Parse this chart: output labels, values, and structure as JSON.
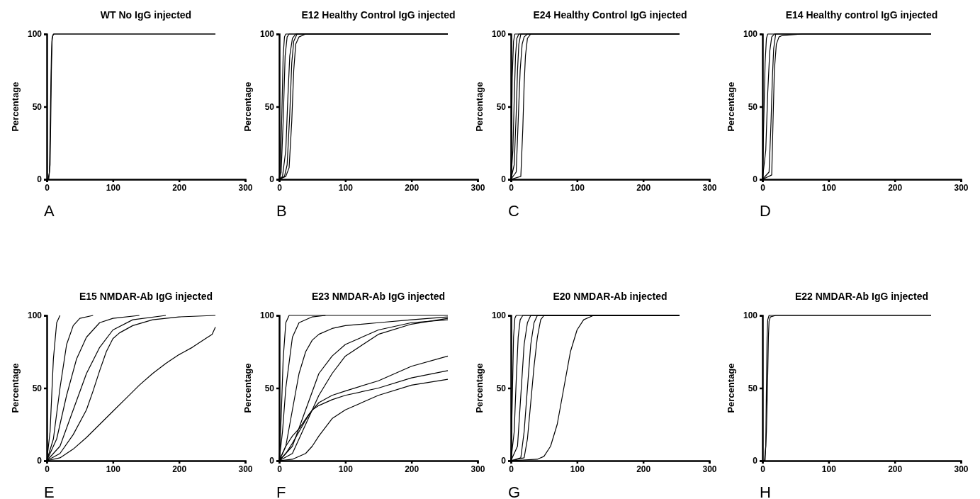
{
  "chart_data": [
    {
      "type": "line",
      "title": "WT No IgG injected",
      "ylabel": "Percentage",
      "xlim": [
        0,
        300
      ],
      "xticks": [
        0,
        100,
        200,
        300
      ],
      "ylim": [
        0,
        100
      ],
      "yticks": [
        0,
        50,
        100
      ],
      "annotations": [
        "A"
      ],
      "series": [
        {
          "color": "#000000",
          "x": [
            0,
            2,
            4,
            5,
            6,
            7,
            8,
            10,
            255
          ],
          "values": [
            0,
            0,
            5,
            30,
            60,
            85,
            97,
            100,
            100
          ]
        },
        {
          "color": "#000000",
          "x": [
            0,
            3,
            5,
            6,
            7,
            8,
            9,
            11,
            255
          ],
          "values": [
            0,
            0,
            10,
            40,
            75,
            95,
            99,
            100,
            100
          ]
        }
      ]
    },
    {
      "type": "line",
      "title": "E12 Healthy Control IgG injected",
      "ylabel": "Percentage",
      "xlim": [
        0,
        300
      ],
      "xticks": [
        0,
        100,
        200,
        300
      ],
      "ylim": [
        0,
        100
      ],
      "yticks": [
        0,
        50,
        100
      ],
      "annotations": [
        "B"
      ],
      "series": [
        {
          "color": "#000000",
          "x": [
            0,
            2,
            4,
            6,
            8,
            10,
            255
          ],
          "values": [
            0,
            10,
            45,
            85,
            98,
            100,
            100
          ]
        },
        {
          "color": "#000000",
          "x": [
            0,
            3,
            6,
            9,
            12,
            15,
            255
          ],
          "values": [
            0,
            5,
            40,
            85,
            98,
            100,
            100
          ]
        },
        {
          "color": "#000000",
          "x": [
            0,
            5,
            10,
            13,
            16,
            20,
            25,
            255
          ],
          "values": [
            0,
            2,
            20,
            55,
            85,
            97,
            100,
            100
          ]
        },
        {
          "color": "#000000",
          "x": [
            0,
            8,
            12,
            16,
            19,
            22,
            27,
            255
          ],
          "values": [
            0,
            2,
            10,
            45,
            80,
            95,
            100,
            100
          ]
        },
        {
          "color": "#000000",
          "x": [
            0,
            10,
            15,
            19,
            22,
            25,
            30,
            40,
            255
          ],
          "values": [
            0,
            2,
            8,
            40,
            75,
            93,
            98,
            100,
            100
          ]
        }
      ]
    },
    {
      "type": "line",
      "title": "E24 Healthy Control IgG injected",
      "ylabel": "Percentage",
      "xlim": [
        0,
        300
      ],
      "xticks": [
        0,
        100,
        200,
        300
      ],
      "ylim": [
        0,
        100
      ],
      "yticks": [
        0,
        50,
        100
      ],
      "annotations": [
        "C"
      ],
      "series": [
        {
          "color": "#000000",
          "x": [
            0,
            1,
            2,
            4,
            6,
            255
          ],
          "values": [
            0,
            30,
            70,
            95,
            100,
            100
          ]
        },
        {
          "color": "#000000",
          "x": [
            0,
            3,
            5,
            7,
            9,
            12,
            255
          ],
          "values": [
            0,
            20,
            55,
            85,
            97,
            100,
            100
          ]
        },
        {
          "color": "#000000",
          "x": [
            0,
            5,
            8,
            10,
            12,
            15,
            255
          ],
          "values": [
            0,
            10,
            45,
            75,
            93,
            100,
            100
          ]
        },
        {
          "color": "#000000",
          "x": [
            0,
            8,
            11,
            14,
            17,
            20,
            25,
            255
          ],
          "values": [
            0,
            5,
            40,
            75,
            93,
            98,
            100,
            100
          ]
        },
        {
          "color": "#000000",
          "x": [
            0,
            15,
            18,
            20,
            22,
            25,
            30,
            255
          ],
          "values": [
            0,
            2,
            35,
            65,
            85,
            97,
            100,
            100
          ]
        }
      ]
    },
    {
      "type": "line",
      "title": "E14 Healthy control IgG injected",
      "ylabel": "Percentage",
      "xlim": [
        0,
        300
      ],
      "xticks": [
        0,
        100,
        200,
        300
      ],
      "ylim": [
        0,
        100
      ],
      "yticks": [
        0,
        50,
        100
      ],
      "annotations": [
        "D"
      ],
      "series": [
        {
          "color": "#000000",
          "x": [
            0,
            2,
            4,
            6,
            8,
            255
          ],
          "values": [
            0,
            40,
            80,
            97,
            100,
            100
          ]
        },
        {
          "color": "#000000",
          "x": [
            0,
            5,
            8,
            11,
            14,
            18,
            255
          ],
          "values": [
            0,
            20,
            60,
            88,
            98,
            100,
            100
          ]
        },
        {
          "color": "#000000",
          "x": [
            0,
            10,
            13,
            15,
            17,
            20,
            255
          ],
          "values": [
            0,
            5,
            40,
            70,
            90,
            100,
            100
          ]
        },
        {
          "color": "#000000",
          "x": [
            0,
            14,
            16,
            18,
            21,
            25,
            30,
            60,
            255
          ],
          "values": [
            0,
            3,
            40,
            75,
            93,
            98,
            99,
            100,
            100
          ]
        }
      ]
    },
    {
      "type": "line",
      "title": "E15 NMDAR-Ab IgG injected",
      "ylabel": "Percentage",
      "xlim": [
        0,
        300
      ],
      "xticks": [
        0,
        100,
        200,
        300
      ],
      "ylim": [
        0,
        100
      ],
      "yticks": [
        0,
        50,
        100
      ],
      "annotations": [
        "E"
      ],
      "series": [
        {
          "color": "#000000",
          "x": [
            0,
            5,
            10,
            15,
            20
          ],
          "values": [
            0,
            20,
            70,
            95,
            100
          ]
        },
        {
          "color": "#000000",
          "x": [
            0,
            10,
            20,
            30,
            40,
            50,
            70
          ],
          "values": [
            0,
            15,
            50,
            80,
            93,
            98,
            100
          ]
        },
        {
          "color": "#000000",
          "x": [
            0,
            15,
            30,
            45,
            60,
            80,
            100,
            140
          ],
          "values": [
            0,
            15,
            45,
            70,
            85,
            95,
            98,
            100
          ]
        },
        {
          "color": "#000000",
          "x": [
            0,
            20,
            40,
            60,
            80,
            100,
            130,
            180
          ],
          "values": [
            0,
            10,
            35,
            60,
            78,
            90,
            97,
            100
          ]
        },
        {
          "color": "#000000",
          "x": [
            0,
            20,
            40,
            60,
            70,
            80,
            90,
            100,
            110,
            130,
            160,
            200,
            255
          ],
          "values": [
            0,
            5,
            18,
            35,
            48,
            62,
            75,
            84,
            88,
            93,
            97,
            99,
            100
          ]
        },
        {
          "color": "#000000",
          "x": [
            0,
            20,
            40,
            60,
            80,
            100,
            120,
            140,
            160,
            180,
            200,
            220,
            240,
            250,
            255
          ],
          "values": [
            0,
            2,
            8,
            16,
            25,
            34,
            43,
            52,
            60,
            67,
            73,
            78,
            84,
            87,
            92
          ]
        }
      ]
    },
    {
      "type": "line",
      "title": "E23 NMDAR-Ab IgG injected",
      "ylabel": "Percentage",
      "xlim": [
        0,
        300
      ],
      "xticks": [
        0,
        100,
        200,
        300
      ],
      "ylim": [
        0,
        100
      ],
      "yticks": [
        0,
        50,
        100
      ],
      "annotations": [
        "F"
      ],
      "series": [
        {
          "color": "#000000",
          "x": [
            0,
            3,
            6,
            10,
            15,
            255
          ],
          "values": [
            0,
            30,
            70,
            95,
            100,
            100
          ]
        },
        {
          "color": "#000000",
          "x": [
            0,
            5,
            10,
            20,
            30,
            50,
            70
          ],
          "values": [
            0,
            20,
            50,
            85,
            95,
            99,
            100
          ]
        },
        {
          "color": "#000000",
          "x": [
            0,
            10,
            20,
            30,
            40,
            50,
            60,
            80,
            100,
            150,
            200,
            255
          ],
          "values": [
            0,
            10,
            35,
            60,
            75,
            83,
            87,
            91,
            93,
            95,
            97,
            99
          ]
        },
        {
          "color": "#000000",
          "x": [
            0,
            20,
            40,
            60,
            80,
            100,
            150,
            200,
            255
          ],
          "values": [
            0,
            10,
            35,
            60,
            72,
            80,
            90,
            95,
            97
          ]
        },
        {
          "color": "#000000",
          "x": [
            0,
            20,
            40,
            60,
            80,
            100,
            150,
            200,
            255
          ],
          "values": [
            0,
            5,
            25,
            45,
            60,
            72,
            87,
            94,
            98
          ]
        },
        {
          "color": "#000000",
          "x": [
            0,
            10,
            20,
            30,
            45,
            60,
            80,
            100,
            150,
            200,
            255
          ],
          "values": [
            0,
            10,
            17,
            22,
            32,
            40,
            45,
            48,
            55,
            65,
            72
          ]
        },
        {
          "color": "#000000",
          "x": [
            0,
            10,
            20,
            30,
            40,
            50,
            60,
            80,
            100,
            150,
            200,
            255
          ],
          "values": [
            0,
            5,
            12,
            20,
            28,
            35,
            38,
            42,
            45,
            50,
            57,
            62
          ]
        },
        {
          "color": "#000000",
          "x": [
            0,
            20,
            40,
            50,
            60,
            70,
            80,
            100,
            150,
            200,
            255
          ],
          "values": [
            0,
            1,
            5,
            10,
            17,
            23,
            29,
            35,
            45,
            52,
            56
          ]
        }
      ]
    },
    {
      "type": "line",
      "title": "E20 NMDAR-Ab injected",
      "ylabel": "Percentage",
      "xlim": [
        0,
        300
      ],
      "xticks": [
        0,
        100,
        200,
        300
      ],
      "ylim": [
        0,
        100
      ],
      "yticks": [
        0,
        50,
        100
      ],
      "annotations": [
        "G"
      ],
      "series": [
        {
          "color": "#000000",
          "x": [
            0,
            2,
            4,
            6,
            8,
            255
          ],
          "values": [
            0,
            40,
            85,
            98,
            100,
            100
          ]
        },
        {
          "color": "#000000",
          "x": [
            0,
            5,
            8,
            11,
            14,
            18,
            255
          ],
          "values": [
            0,
            20,
            55,
            85,
            97,
            100,
            100
          ]
        },
        {
          "color": "#000000",
          "x": [
            0,
            10,
            15,
            20,
            25,
            30,
            255
          ],
          "values": [
            0,
            10,
            45,
            80,
            95,
            100,
            100
          ]
        },
        {
          "color": "#000000",
          "x": [
            0,
            15,
            20,
            25,
            30,
            35,
            40,
            255
          ],
          "values": [
            0,
            2,
            20,
            50,
            80,
            95,
            100,
            100
          ]
        },
        {
          "color": "#000000",
          "x": [
            0,
            20,
            25,
            30,
            35,
            40,
            45,
            50,
            255
          ],
          "values": [
            0,
            2,
            15,
            40,
            65,
            85,
            97,
            100,
            100
          ]
        },
        {
          "color": "#000000",
          "x": [
            0,
            40,
            50,
            60,
            70,
            80,
            90,
            100,
            110,
            120,
            125,
            255
          ],
          "values": [
            0,
            1,
            3,
            10,
            25,
            50,
            75,
            90,
            97,
            99,
            100,
            100
          ]
        }
      ]
    },
    {
      "type": "line",
      "title": "E22 NMDAR-Ab IgG injected",
      "ylabel": "Percentage",
      "xlim": [
        0,
        300
      ],
      "xticks": [
        0,
        100,
        200,
        300
      ],
      "ylim": [
        0,
        100
      ],
      "yticks": [
        0,
        50,
        100
      ],
      "annotations": [
        "H"
      ],
      "series": [
        {
          "color": "#000000",
          "x": [
            0,
            3,
            5,
            6,
            7,
            8,
            10,
            255
          ],
          "values": [
            0,
            0,
            10,
            50,
            85,
            97,
            100,
            100
          ]
        },
        {
          "color": "#000000",
          "x": [
            0,
            4,
            6,
            8,
            9,
            10,
            12,
            20,
            255
          ],
          "values": [
            0,
            0,
            20,
            60,
            85,
            96,
            99,
            100,
            100
          ]
        }
      ]
    }
  ]
}
